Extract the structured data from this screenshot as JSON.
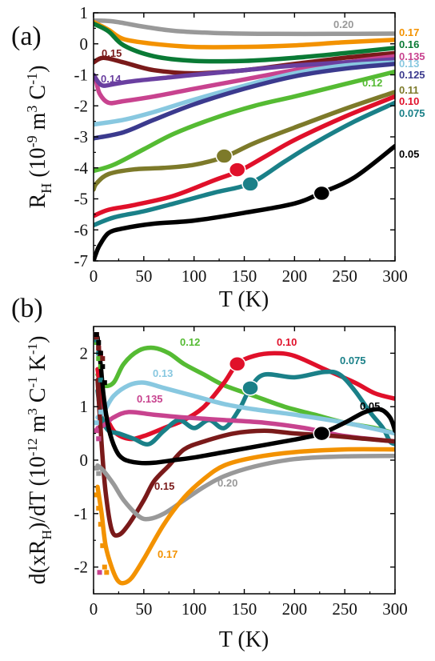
{
  "chart_data": [
    {
      "type": "line",
      "panel_label": "(a)",
      "xlabel": "T (K)",
      "ylabel_main": "R",
      "ylabel_sub": "H",
      "ylabel_rest": " (10",
      "ylabel_exp": "-9",
      "ylabel_units": " m",
      "ylabel_units_exp": "3",
      "ylabel_tail": " C",
      "ylabel_tail_exp": "-1",
      "ylabel_close": ")",
      "xlim": [
        0,
        300
      ],
      "ylim": [
        -7,
        1
      ],
      "xticks": [
        "0",
        "50",
        "100",
        "150",
        "200",
        "250",
        "300"
      ],
      "yticks": [
        "-7",
        "-6",
        "-5",
        "-4",
        "-3",
        "-2",
        "-1",
        "0",
        "1"
      ],
      "series": [
        {
          "name": "0.20",
          "color": "#999999",
          "x": [
            0,
            20,
            50,
            80,
            120,
            180,
            240,
            300
          ],
          "y": [
            0.75,
            0.72,
            0.55,
            0.42,
            0.35,
            0.32,
            0.32,
            0.33
          ]
        },
        {
          "name": "0.17",
          "color": "#f39200",
          "x": [
            0,
            15,
            30,
            60,
            100,
            150,
            200,
            250,
            300
          ],
          "y": [
            0.7,
            0.45,
            0.15,
            0.0,
            -0.1,
            -0.1,
            -0.05,
            0.05,
            0.13
          ]
        },
        {
          "name": "0.16",
          "color": "#0a7a35",
          "x": [
            0,
            15,
            30,
            60,
            100,
            150,
            200,
            250,
            300
          ],
          "y": [
            0.65,
            0.4,
            -0.05,
            -0.4,
            -0.55,
            -0.55,
            -0.45,
            -0.3,
            -0.13
          ]
        },
        {
          "name": "0.15",
          "color": "#7a1a1a",
          "x": [
            0,
            10,
            30,
            60,
            100,
            150,
            200,
            250,
            300
          ],
          "y": [
            -0.6,
            -0.45,
            -0.6,
            -0.85,
            -0.95,
            -0.85,
            -0.65,
            -0.45,
            -0.3
          ]
        },
        {
          "name": "0.135",
          "color": "#c8438f",
          "x": [
            2,
            6,
            15,
            30,
            60,
            100,
            150,
            200,
            250,
            300
          ],
          "y": [
            -1.1,
            -1.6,
            -1.9,
            -1.85,
            -1.7,
            -1.45,
            -1.15,
            -0.85,
            -0.6,
            -0.4
          ]
        },
        {
          "name": "0.14",
          "color": "#6a3fa0",
          "x": [
            0,
            5,
            10,
            20,
            40,
            70,
            100,
            150,
            200,
            250,
            300
          ],
          "y": [
            -1.0,
            -1.25,
            -1.35,
            -1.3,
            -1.2,
            -1.1,
            -1.0,
            -0.85,
            -0.7,
            -0.6,
            -0.5
          ]
        },
        {
          "name": "0.13",
          "color": "#88c8e0",
          "x": [
            0,
            30,
            60,
            100,
            150,
            200,
            250,
            300
          ],
          "y": [
            -2.6,
            -2.45,
            -2.2,
            -1.8,
            -1.35,
            -0.95,
            -0.7,
            -0.6
          ]
        },
        {
          "name": "0.125",
          "color": "#3b3a8e",
          "x": [
            0,
            30,
            60,
            100,
            150,
            200,
            250,
            300
          ],
          "y": [
            -3.05,
            -2.85,
            -2.45,
            -1.95,
            -1.45,
            -1.05,
            -0.8,
            -0.65
          ]
        },
        {
          "name": "0.12",
          "color": "#55bb33",
          "x": [
            0,
            20,
            50,
            80,
            120,
            160,
            200,
            250,
            300
          ],
          "y": [
            -4.1,
            -3.9,
            -3.4,
            -2.9,
            -2.4,
            -2.0,
            -1.7,
            -1.3,
            -0.9
          ]
        },
        {
          "name": "0.11",
          "color": "#7d7a2a",
          "x": [
            0,
            3,
            15,
            40,
            70,
            100,
            130,
            160,
            200,
            250,
            300
          ],
          "y": [
            -4.7,
            -4.5,
            -4.2,
            -4.05,
            -4.0,
            -3.9,
            -3.65,
            -3.2,
            -2.7,
            -2.1,
            -1.55
          ]
        },
        {
          "name": "0.10",
          "color": "#e0102a",
          "x": [
            0,
            15,
            40,
            80,
            120,
            145,
            170,
            200,
            250,
            300
          ],
          "y": [
            -5.55,
            -5.35,
            -5.2,
            -4.9,
            -4.4,
            -4.1,
            -3.65,
            -3.1,
            -2.35,
            -1.7
          ]
        },
        {
          "name": "0.075",
          "color": "#1a8088",
          "x": [
            0,
            20,
            50,
            80,
            120,
            156,
            190,
            220,
            260,
            300
          ],
          "y": [
            -5.85,
            -5.6,
            -5.4,
            -5.15,
            -4.8,
            -4.5,
            -3.8,
            -3.2,
            -2.5,
            -1.9
          ]
        },
        {
          "name": "0.05",
          "color": "#000000",
          "x": [
            0,
            2,
            6,
            15,
            30,
            60,
            100,
            150,
            200,
            227,
            260,
            300
          ],
          "y": [
            -7.0,
            -6.8,
            -6.5,
            -6.1,
            -5.95,
            -5.8,
            -5.7,
            -5.45,
            -5.15,
            -4.8,
            -4.3,
            -3.3
          ]
        }
      ],
      "markers": [
        {
          "series": "0.11",
          "x": 130,
          "y": -3.62,
          "color": "#7d7a2a"
        },
        {
          "series": "0.10",
          "x": 143,
          "y": -4.06,
          "color": "#e0102a"
        },
        {
          "series": "0.075",
          "x": 156,
          "y": -4.52,
          "color": "#1a8088"
        },
        {
          "series": "0.05",
          "x": 227,
          "y": -4.82,
          "color": "#000000"
        }
      ]
    },
    {
      "type": "line",
      "panel_label": "(b)",
      "xlabel": "T (K)",
      "ylabel_main": "d(xR",
      "ylabel_sub": "H",
      "ylabel_rest": ")/dT (10",
      "ylabel_exp": "-12",
      "ylabel_units": " m",
      "ylabel_units_exp": "3",
      "ylabel_tail": " C",
      "ylabel_tail_exp": "-1",
      "ylabel_tail2": " K",
      "ylabel_tail2_exp": "-1",
      "ylabel_close": ")",
      "xlim": [
        0,
        300
      ],
      "ylim": [
        -2.5,
        2.5
      ],
      "xticks": [
        "0",
        "50",
        "100",
        "150",
        "200",
        "250",
        "300"
      ],
      "yticks": [
        "-2",
        "-1",
        "0",
        "1",
        "2"
      ],
      "series": [
        {
          "name": "0.12",
          "color": "#55bb33",
          "x": [
            4,
            10,
            20,
            30,
            45,
            60,
            75,
            90,
            110,
            130,
            160,
            190,
            220,
            250,
            280,
            300
          ],
          "y": [
            1.6,
            1.4,
            1.45,
            1.8,
            2.05,
            2.1,
            2.0,
            1.8,
            1.6,
            1.4,
            1.2,
            1.0,
            0.85,
            0.7,
            0.6,
            0.5
          ]
        },
        {
          "name": "0.10",
          "color": "#e0102a",
          "x": [
            4,
            10,
            20,
            35,
            50,
            70,
            90,
            110,
            130,
            143,
            160,
            180,
            200,
            230,
            260,
            280,
            300
          ],
          "y": [
            1.7,
            1.0,
            0.55,
            0.4,
            0.45,
            0.6,
            0.75,
            1.0,
            1.45,
            1.8,
            1.95,
            2.0,
            1.95,
            1.7,
            1.45,
            1.25,
            1.15
          ]
        },
        {
          "name": "0.075",
          "color": "#1a8088",
          "x": [
            4,
            8,
            15,
            25,
            40,
            55,
            70,
            85,
            100,
            115,
            130,
            145,
            156,
            170,
            200,
            230,
            245,
            260,
            275,
            288,
            295,
            300
          ],
          "y": [
            1.3,
            0.8,
            0.55,
            0.5,
            0.4,
            0.3,
            0.55,
            0.75,
            0.6,
            0.75,
            0.6,
            0.95,
            1.35,
            1.6,
            1.55,
            1.65,
            1.6,
            1.3,
            0.9,
            0.6,
            0.35,
            0.3
          ]
        },
        {
          "name": "0.13",
          "color": "#88c8e0",
          "x": [
            4,
            10,
            20,
            35,
            50,
            70,
            100,
            130,
            160,
            200,
            250,
            300
          ],
          "y": [
            0.8,
            0.9,
            1.2,
            1.4,
            1.45,
            1.35,
            1.2,
            1.05,
            0.95,
            0.85,
            0.7,
            0.5
          ]
        },
        {
          "name": "0.135",
          "color": "#c8438f",
          "x": [
            4,
            10,
            20,
            35,
            60,
            90,
            130,
            170,
            210,
            250,
            300
          ],
          "y": [
            0.6,
            0.65,
            0.8,
            0.9,
            0.85,
            0.8,
            0.75,
            0.7,
            0.6,
            0.45,
            0.35
          ]
        },
        {
          "name": "0.15",
          "color": "#7a1a1a",
          "x": [
            4,
            8,
            12,
            18,
            25,
            35,
            50,
            60,
            75,
            90,
            110,
            140,
            170,
            200,
            240,
            270,
            300
          ],
          "y": [
            1.5,
            0.3,
            -0.6,
            -1.3,
            -1.4,
            -1.2,
            -0.75,
            -0.4,
            -0.1,
            0.2,
            0.35,
            0.5,
            0.55,
            0.5,
            0.45,
            0.4,
            0.35
          ]
        },
        {
          "name": "0.20",
          "color": "#999999",
          "x": [
            4,
            10,
            20,
            30,
            45,
            55,
            70,
            90,
            110,
            130,
            160,
            200,
            250,
            300
          ],
          "y": [
            -0.1,
            -0.2,
            -0.45,
            -0.75,
            -1.05,
            -1.1,
            -1.0,
            -0.75,
            -0.5,
            -0.3,
            -0.12,
            0.02,
            0.07,
            0.08
          ]
        },
        {
          "name": "0.17",
          "color": "#f39200",
          "x": [
            4,
            8,
            12,
            18,
            24,
            30,
            38,
            50,
            70,
            90,
            110,
            130,
            160,
            200,
            250,
            300
          ],
          "y": [
            -0.5,
            -1.0,
            -1.6,
            -2.0,
            -2.25,
            -2.3,
            -2.2,
            -1.85,
            -1.2,
            -0.7,
            -0.35,
            -0.1,
            0.05,
            0.15,
            0.2,
            0.2
          ]
        },
        {
          "name": "0.05",
          "color": "#000000",
          "x": [
            4,
            7,
            10,
            15,
            22,
            30,
            45,
            60,
            80,
            100,
            130,
            160,
            190,
            210,
            227,
            250,
            270,
            285,
            295,
            300
          ],
          "y": [
            2.3,
            1.8,
            1.2,
            0.6,
            0.2,
            0.02,
            -0.05,
            -0.05,
            0.0,
            0.05,
            0.15,
            0.25,
            0.35,
            0.42,
            0.5,
            0.7,
            0.9,
            0.95,
            0.8,
            0.55
          ]
        }
      ],
      "scatter_points": [
        {
          "color": "#e0102a",
          "points": [
            [
              3,
              2.35
            ],
            [
              5,
              2.1
            ],
            [
              7,
              1.95
            ]
          ]
        },
        {
          "color": "#55bb33",
          "points": [
            [
              3,
              2.2
            ],
            [
              5,
              1.9
            ],
            [
              7,
              1.75
            ]
          ]
        },
        {
          "color": "#1a8088",
          "points": [
            [
              3,
              2.25
            ],
            [
              5,
              2.0
            ],
            [
              7,
              1.5
            ]
          ]
        },
        {
          "color": "#88c8e0",
          "points": [
            [
              3,
              0.7
            ],
            [
              5,
              0.4
            ],
            [
              7,
              0.9
            ]
          ]
        },
        {
          "color": "#c8438f",
          "points": [
            [
              3,
              0.55
            ],
            [
              5,
              0.4
            ]
          ]
        },
        {
          "color": "#7a1a1a",
          "points": [
            [
              3,
              2.3
            ],
            [
              5,
              2.1
            ],
            [
              7,
              2.0
            ],
            [
              9,
              1.9
            ]
          ]
        },
        {
          "color": "#999999",
          "points": [
            [
              3,
              -0.15
            ],
            [
              5,
              -0.25
            ]
          ]
        },
        {
          "color": "#f39200",
          "points": [
            [
              3,
              -0.65
            ],
            [
              5,
              -0.9
            ],
            [
              7,
              -1.2
            ],
            [
              9,
              -1.6
            ],
            [
              11,
              -2.0
            ],
            [
              13,
              -2.1
            ]
          ]
        },
        {
          "color": "#c8438f",
          "points": [
            [
              6,
              -2.1
            ]
          ]
        },
        {
          "color": "#000000",
          "points": [
            [
              3,
              2.35
            ],
            [
              5,
              2.2
            ],
            [
              7,
              2.0
            ],
            [
              9,
              1.75
            ],
            [
              11,
              1.45
            ]
          ]
        }
      ],
      "markers": [
        {
          "series": "0.10",
          "x": 143,
          "y": 1.8,
          "color": "#e0102a"
        },
        {
          "series": "0.075",
          "x": 156,
          "y": 1.35,
          "color": "#1a8088"
        },
        {
          "series": "0.05",
          "x": 227,
          "y": 0.5,
          "color": "#000000"
        }
      ]
    }
  ],
  "labels_a": [
    {
      "text": "0.20",
      "color": "#999999"
    },
    {
      "text": "0.17",
      "color": "#f39200"
    },
    {
      "text": "0.16",
      "color": "#0a7a35"
    },
    {
      "text": "0.15",
      "color": "#7a1a1a"
    },
    {
      "text": "0.135",
      "color": "#c8438f"
    },
    {
      "text": "0.14",
      "color": "#6a3fa0"
    },
    {
      "text": "0.13",
      "color": "#88c8e0"
    },
    {
      "text": "0.125",
      "color": "#3b3a8e"
    },
    {
      "text": "0.12",
      "color": "#55bb33"
    },
    {
      "text": "0.11",
      "color": "#7d7a2a"
    },
    {
      "text": "0.10",
      "color": "#e0102a"
    },
    {
      "text": "0.075",
      "color": "#1a8088"
    },
    {
      "text": "0.05",
      "color": "#000000"
    }
  ],
  "labels_b": [
    {
      "text": "0.12",
      "color": "#55bb33"
    },
    {
      "text": "0.10",
      "color": "#e0102a"
    },
    {
      "text": "0.075",
      "color": "#1a8088"
    },
    {
      "text": "0.13",
      "color": "#88c8e0"
    },
    {
      "text": "0.135",
      "color": "#c8438f"
    },
    {
      "text": "0.05",
      "color": "#000000"
    },
    {
      "text": "0.15",
      "color": "#7a1a1a"
    },
    {
      "text": "0.20",
      "color": "#999999"
    },
    {
      "text": "0.17",
      "color": "#f39200"
    }
  ]
}
